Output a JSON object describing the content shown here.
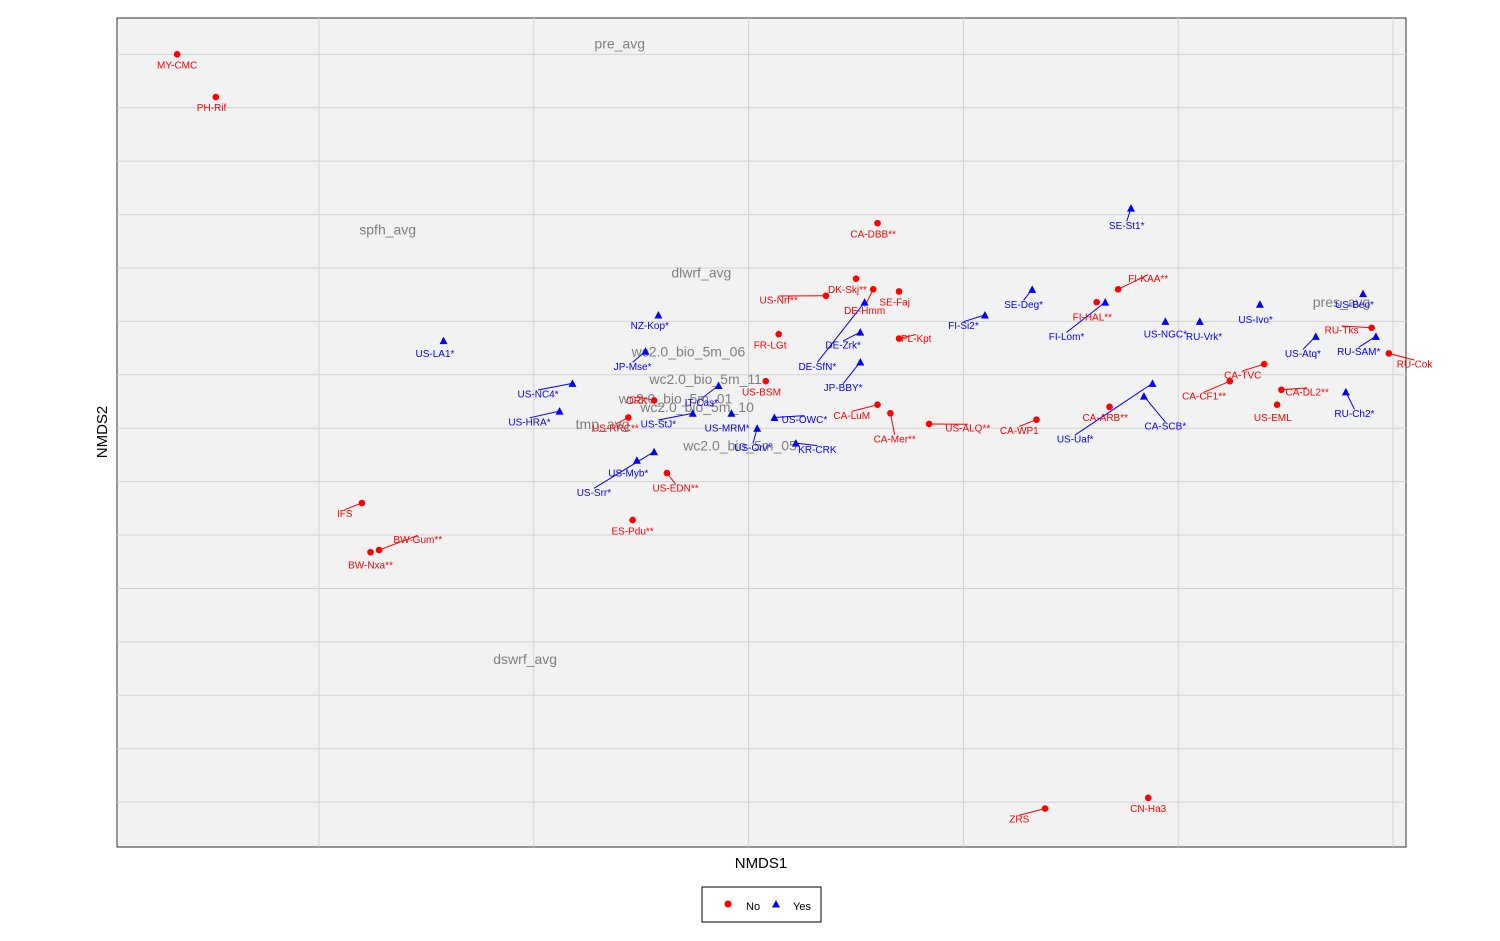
{
  "chart_data": {
    "type": "scatter",
    "xlabel": "NMDS1",
    "ylabel": "NMDS2",
    "xlim": [
      -0.47,
      2.53
    ],
    "ylim": [
      -1.71,
      2.17
    ],
    "grid": true,
    "legend": {
      "placement": "bottom",
      "entries": [
        {
          "name": "No",
          "color": "#ff0000",
          "shape": "circle"
        },
        {
          "name": "Yes",
          "color": "#0000ff",
          "shape": "triangle"
        }
      ]
    },
    "colors": {
      "No": "#ff0000",
      "Yes": "#0000ff",
      "env": "#7f7f7f"
    },
    "points": [
      {
        "label": "MY-CMC",
        "group": "No",
        "x": -0.33,
        "y": 2.0,
        "lx": -0.33,
        "ly": 1.95
      },
      {
        "label": "PH-Rif",
        "group": "No",
        "x": -0.24,
        "y": 1.8,
        "lx": -0.25,
        "ly": 1.75
      },
      {
        "label": "CA-DBB**",
        "group": "No",
        "x": 1.3,
        "y": 1.21,
        "lx": 1.29,
        "ly": 1.16
      },
      {
        "label": "DK-Skj**",
        "group": "No",
        "x": 1.25,
        "y": 0.95,
        "lx": 1.23,
        "ly": 0.9
      },
      {
        "label": "US-Nrf**",
        "group": "No",
        "x": 1.18,
        "y": 0.87,
        "lx": 1.07,
        "ly": 0.85
      },
      {
        "label": "DE-Hmm",
        "group": "No",
        "x": 1.29,
        "y": 0.9,
        "lx": 1.27,
        "ly": 0.8
      },
      {
        "label": "SE-Faj",
        "group": "No",
        "x": 1.35,
        "y": 0.89,
        "lx": 1.34,
        "ly": 0.84
      },
      {
        "label": "PL-Kpt",
        "group": "No",
        "x": 1.35,
        "y": 0.67,
        "lx": 1.39,
        "ly": 0.67
      },
      {
        "label": "FR-LGt",
        "group": "No",
        "x": 1.07,
        "y": 0.69,
        "lx": 1.05,
        "ly": 0.64
      },
      {
        "label": "US-BSM",
        "group": "No",
        "x": 1.04,
        "y": 0.47,
        "lx": 1.03,
        "ly": 0.42
      },
      {
        "label": "CA-LuM",
        "group": "No",
        "x": 1.3,
        "y": 0.36,
        "lx": 1.24,
        "ly": 0.31
      },
      {
        "label": "CA-Mer**",
        "group": "No",
        "x": 1.33,
        "y": 0.32,
        "lx": 1.34,
        "ly": 0.2
      },
      {
        "label": "US-ALQ**",
        "group": "No",
        "x": 1.42,
        "y": 0.27,
        "lx": 1.51,
        "ly": 0.25
      },
      {
        "label": "CA-WP1",
        "group": "No",
        "x": 1.67,
        "y": 0.29,
        "lx": 1.63,
        "ly": 0.24
      },
      {
        "label": "FI-KAA**",
        "group": "No",
        "x": 1.86,
        "y": 0.9,
        "lx": 1.93,
        "ly": 0.95
      },
      {
        "label": "FI-HAL**",
        "group": "No",
        "x": 1.81,
        "y": 0.84,
        "lx": 1.8,
        "ly": 0.77
      },
      {
        "label": "CA-ARB**",
        "group": "No",
        "x": 1.84,
        "y": 0.35,
        "lx": 1.83,
        "ly": 0.3
      },
      {
        "label": "RU-Tks",
        "group": "No",
        "x": 2.45,
        "y": 0.72,
        "lx": 2.38,
        "ly": 0.71
      },
      {
        "label": "RU-Cok",
        "group": "No",
        "x": 2.49,
        "y": 0.6,
        "lx": 2.55,
        "ly": 0.55
      },
      {
        "label": "CA-TVC",
        "group": "No",
        "x": 2.2,
        "y": 0.55,
        "lx": 2.15,
        "ly": 0.5
      },
      {
        "label": "CA-CF1**",
        "group": "No",
        "x": 2.12,
        "y": 0.47,
        "lx": 2.06,
        "ly": 0.4
      },
      {
        "label": "CA-DL2**",
        "group": "No",
        "x": 2.24,
        "y": 0.43,
        "lx": 2.3,
        "ly": 0.42
      },
      {
        "label": "US-EML",
        "group": "No",
        "x": 2.23,
        "y": 0.36,
        "lx": 2.22,
        "ly": 0.3
      },
      {
        "label": "US-RRC**",
        "group": "No",
        "x": 0.72,
        "y": 0.3,
        "lx": 0.69,
        "ly": 0.25
      },
      {
        "label": "ORK",
        "group": "No",
        "x": 0.78,
        "y": 0.38,
        "lx": 0.74,
        "ly": 0.38
      },
      {
        "label": "US-EDN**",
        "group": "No",
        "x": 0.81,
        "y": 0.04,
        "lx": 0.83,
        "ly": -0.03
      },
      {
        "label": "ES-Pdu**",
        "group": "No",
        "x": 0.73,
        "y": -0.18,
        "lx": 0.73,
        "ly": -0.23
      },
      {
        "label": "IFS",
        "group": "No",
        "x": 0.1,
        "y": -0.1,
        "lx": 0.06,
        "ly": -0.15
      },
      {
        "label": "BW-Gum**",
        "group": "No",
        "x": 0.14,
        "y": -0.32,
        "lx": 0.23,
        "ly": -0.27
      },
      {
        "label": "BW-Nxa**",
        "group": "No",
        "x": 0.12,
        "y": -0.33,
        "lx": 0.12,
        "ly": -0.39
      },
      {
        "label": "ZRS",
        "group": "No",
        "x": 1.69,
        "y": -1.53,
        "lx": 1.63,
        "ly": -1.58
      },
      {
        "label": "CN-Ha3",
        "group": "No",
        "x": 1.93,
        "y": -1.48,
        "lx": 1.93,
        "ly": -1.53
      },
      {
        "label": "SE-St1*",
        "group": "Yes",
        "x": 1.89,
        "y": 1.28,
        "lx": 1.88,
        "ly": 1.2
      },
      {
        "label": "SE-Deg*",
        "group": "Yes",
        "x": 1.66,
        "y": 0.9,
        "lx": 1.64,
        "ly": 0.83
      },
      {
        "label": "FI-Si2*",
        "group": "Yes",
        "x": 1.55,
        "y": 0.78,
        "lx": 1.5,
        "ly": 0.73
      },
      {
        "label": "FI-Lom*",
        "group": "Yes",
        "x": 1.83,
        "y": 0.84,
        "lx": 1.74,
        "ly": 0.68
      },
      {
        "label": "US-NGC*",
        "group": "Yes",
        "x": 1.97,
        "y": 0.75,
        "lx": 1.97,
        "ly": 0.69
      },
      {
        "label": "RU-Vrk*",
        "group": "Yes",
        "x": 2.05,
        "y": 0.75,
        "lx": 2.06,
        "ly": 0.68
      },
      {
        "label": "US-Ivo*",
        "group": "Yes",
        "x": 2.19,
        "y": 0.83,
        "lx": 2.18,
        "ly": 0.76
      },
      {
        "label": "US-Beo*",
        "group": "Yes",
        "x": 2.43,
        "y": 0.88,
        "lx": 2.41,
        "ly": 0.83
      },
      {
        "label": "US-Atq*",
        "group": "Yes",
        "x": 2.32,
        "y": 0.68,
        "lx": 2.29,
        "ly": 0.6
      },
      {
        "label": "RU-SAM*",
        "group": "Yes",
        "x": 2.46,
        "y": 0.68,
        "lx": 2.42,
        "ly": 0.61
      },
      {
        "label": "RU-Ch2*",
        "group": "Yes",
        "x": 2.39,
        "y": 0.42,
        "lx": 2.41,
        "ly": 0.32
      },
      {
        "label": "CA-SCB*",
        "group": "Yes",
        "x": 1.92,
        "y": 0.4,
        "lx": 1.97,
        "ly": 0.26
      },
      {
        "label": "US-Uaf*",
        "group": "Yes",
        "x": 1.94,
        "y": 0.46,
        "lx": 1.76,
        "ly": 0.2
      },
      {
        "label": "DE-Zrk*",
        "group": "Yes",
        "x": 1.26,
        "y": 0.7,
        "lx": 1.22,
        "ly": 0.64
      },
      {
        "label": "DE-SfN*",
        "group": "Yes",
        "x": 1.27,
        "y": 0.84,
        "lx": 1.16,
        "ly": 0.54
      },
      {
        "label": "JP-BBY*",
        "group": "Yes",
        "x": 1.26,
        "y": 0.56,
        "lx": 1.22,
        "ly": 0.44
      },
      {
        "label": "KR-CRK",
        "group": "Yes",
        "x": 1.11,
        "y": 0.18,
        "lx": 1.16,
        "ly": 0.15
      },
      {
        "label": "US-OWC*",
        "group": "Yes",
        "x": 1.06,
        "y": 0.3,
        "lx": 1.13,
        "ly": 0.29
      },
      {
        "label": "US-Orv*",
        "group": "Yes",
        "x": 1.02,
        "y": 0.25,
        "lx": 1.01,
        "ly": 0.16
      },
      {
        "label": "US-MRM*",
        "group": "Yes",
        "x": 0.96,
        "y": 0.32,
        "lx": 0.95,
        "ly": 0.25
      },
      {
        "label": "IT-Cas*",
        "group": "Yes",
        "x": 0.93,
        "y": 0.45,
        "lx": 0.89,
        "ly": 0.37
      },
      {
        "label": "US-StJ*",
        "group": "Yes",
        "x": 0.87,
        "y": 0.32,
        "lx": 0.79,
        "ly": 0.27
      },
      {
        "label": "JP-Mse*",
        "group": "Yes",
        "x": 0.76,
        "y": 0.61,
        "lx": 0.73,
        "ly": 0.54
      },
      {
        "label": "NZ-Kop*",
        "group": "Yes",
        "x": 0.79,
        "y": 0.78,
        "lx": 0.77,
        "ly": 0.73
      },
      {
        "label": "US-NC4*",
        "group": "Yes",
        "x": 0.59,
        "y": 0.46,
        "lx": 0.51,
        "ly": 0.41
      },
      {
        "label": "US-HRA*",
        "group": "Yes",
        "x": 0.56,
        "y": 0.33,
        "lx": 0.49,
        "ly": 0.28
      },
      {
        "label": "US-Myb*",
        "group": "Yes",
        "x": 0.74,
        "y": 0.1,
        "lx": 0.72,
        "ly": 0.04
      },
      {
        "label": "US-Srr*",
        "group": "Yes",
        "x": 0.78,
        "y": 0.14,
        "lx": 0.64,
        "ly": -0.05
      },
      {
        "label": "US-LA1*",
        "group": "Yes",
        "x": 0.29,
        "y": 0.66,
        "lx": 0.27,
        "ly": 0.6
      }
    ],
    "env_vectors": [
      {
        "label": "pre_avg",
        "x": 0.7,
        "y": 2.05
      },
      {
        "label": "spfh_avg",
        "x": 0.16,
        "y": 1.18
      },
      {
        "label": "dlwrf_avg",
        "x": 0.89,
        "y": 0.98
      },
      {
        "label": "pres_avg",
        "x": 2.38,
        "y": 0.84
      },
      {
        "label": "wc2.0_bio_5m_06",
        "x": 0.86,
        "y": 0.61
      },
      {
        "label": "wc2.0_bio_5m_11",
        "x": 0.9,
        "y": 0.48
      },
      {
        "label": "wc2.0_bio_5m_01",
        "x": 0.83,
        "y": 0.39
      },
      {
        "label": "wc2.0_bio_5m_10",
        "x": 0.88,
        "y": 0.35
      },
      {
        "label": "tmp_avg",
        "x": 0.66,
        "y": 0.27
      },
      {
        "label": "wc2.0_bio_5m_05",
        "x": 0.98,
        "y": 0.17
      },
      {
        "label": "dswrf_avg",
        "x": 0.48,
        "y": -0.83
      }
    ]
  }
}
